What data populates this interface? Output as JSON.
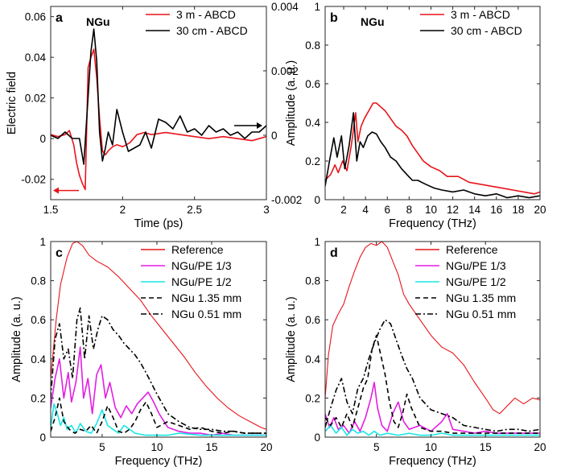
{
  "chart_data": [
    {
      "panel": "a",
      "tag": "NGu",
      "type": "line",
      "xlabel": "Time (ps)",
      "ylabel": "Electric field",
      "y2label": "",
      "xlim": [
        1.5,
        3
      ],
      "ylim": [
        -0.03,
        0.065
      ],
      "y2lim": [
        -0.002,
        0.004
      ],
      "xticks": [
        "1.5",
        "2",
        "2.5",
        "3"
      ],
      "yticks": [
        "-0.02",
        "0",
        "0.02",
        "0.04",
        "0.06"
      ],
      "y2ticks": [
        "-0.002",
        "0",
        "0.002",
        "0.004"
      ],
      "legend": "top-right",
      "series": [
        {
          "name": "3 m - ABCD",
          "color": "#e8141b",
          "axis": "left",
          "x": [
            1.5,
            1.55,
            1.6,
            1.63,
            1.66,
            1.68,
            1.7,
            1.72,
            1.74,
            1.76,
            1.78,
            1.8,
            1.82,
            1.84,
            1.86,
            1.88,
            1.9,
            1.93,
            1.96,
            2.0,
            2.05,
            2.1,
            2.15,
            2.2,
            2.3,
            2.4,
            2.5,
            2.6,
            2.7,
            2.8,
            2.9,
            3.0
          ],
          "y": [
            0.002,
            0.001,
            0.002,
            0.004,
            -0.003,
            -0.012,
            -0.018,
            -0.022,
            -0.025,
            0.035,
            0.04,
            0.044,
            0.03,
            0.01,
            -0.006,
            -0.008,
            -0.006,
            -0.004,
            -0.003,
            -0.004,
            -0.002,
            0.002,
            0.003,
            0.002,
            0.003,
            0.002,
            0.001,
            0.0,
            0.001,
            0.0,
            -0.001,
            0.001
          ]
        },
        {
          "name": "30 cm - ABCD",
          "color": "#000000",
          "axis": "right",
          "x": [
            1.5,
            1.55,
            1.6,
            1.65,
            1.7,
            1.73,
            1.76,
            1.78,
            1.8,
            1.82,
            1.84,
            1.86,
            1.88,
            1.9,
            1.93,
            1.96,
            2.0,
            2.04,
            2.08,
            2.12,
            2.16,
            2.2,
            2.25,
            2.3,
            2.35,
            2.4,
            2.45,
            2.5,
            2.55,
            2.6,
            2.65,
            2.7,
            2.75,
            2.8,
            2.85,
            2.9,
            2.95,
            3.0
          ],
          "y": [
            0.0,
            -0.0001,
            0.0001,
            -0.0001,
            -0.0001,
            -0.0009,
            0.0012,
            0.0026,
            0.0033,
            0.0023,
            0.0001,
            -0.0008,
            -0.0004,
            0.0001,
            -0.0003,
            0.0008,
            0.0001,
            -0.0005,
            -0.0004,
            -0.0003,
            0.0001,
            -0.0004,
            0.0005,
            0.0004,
            0.0002,
            0.0006,
            0.0001,
            0.0002,
            0.0,
            0.0003,
            0.0001,
            0.0002,
            0.0,
            0.0001,
            -0.0001,
            0.0001,
            0.0001,
            0.0003
          ]
        }
      ]
    },
    {
      "panel": "b",
      "tag": "NGu",
      "type": "line",
      "xlabel": "Frequency (THz)",
      "ylabel": "Amplitude (a. u.)",
      "xlim": [
        0.3,
        20
      ],
      "ylim": [
        0,
        1
      ],
      "xticks": [
        "2",
        "4",
        "6",
        "8",
        "10",
        "12",
        "14",
        "16",
        "18",
        "20"
      ],
      "yticks": [
        "0",
        "0.2",
        "0.4",
        "0.6",
        "0.8",
        "1"
      ],
      "legend": "top-right",
      "series": [
        {
          "name": "3 m - ABCD",
          "color": "#e8141b",
          "x": [
            0.3,
            0.8,
            1.2,
            1.5,
            1.9,
            2.3,
            2.7,
            3.1,
            3.3,
            3.6,
            3.9,
            4.3,
            4.7,
            5.0,
            5.4,
            5.8,
            6.3,
            6.8,
            7.3,
            7.8,
            8.3,
            8.8,
            9.3,
            10.0,
            10.8,
            11.5,
            12.5,
            13.5,
            14.5,
            15.5,
            16.5,
            17.5,
            18.5,
            19.5,
            20.0
          ],
          "y": [
            0.1,
            0.13,
            0.18,
            0.14,
            0.2,
            0.15,
            0.28,
            0.45,
            0.3,
            0.38,
            0.42,
            0.46,
            0.5,
            0.5,
            0.48,
            0.46,
            0.42,
            0.38,
            0.36,
            0.33,
            0.28,
            0.24,
            0.2,
            0.17,
            0.15,
            0.12,
            0.12,
            0.09,
            0.08,
            0.07,
            0.06,
            0.05,
            0.04,
            0.03,
            0.04
          ]
        },
        {
          "name": "30 cm - ABCD",
          "color": "#000000",
          "x": [
            0.3,
            0.7,
            1.1,
            1.4,
            1.8,
            2.1,
            2.5,
            2.9,
            3.2,
            3.5,
            3.8,
            4.2,
            4.6,
            5.0,
            5.4,
            5.8,
            6.3,
            6.8,
            7.3,
            7.8,
            8.3,
            8.8,
            9.5,
            10.3,
            11.0,
            12.0,
            13.0,
            14.0,
            15.0,
            16.0,
            17.0,
            18.0,
            19.0,
            20.0
          ],
          "y": [
            0.07,
            0.2,
            0.32,
            0.22,
            0.33,
            0.16,
            0.28,
            0.45,
            0.2,
            0.3,
            0.27,
            0.33,
            0.35,
            0.34,
            0.3,
            0.27,
            0.22,
            0.2,
            0.16,
            0.13,
            0.1,
            0.1,
            0.08,
            0.06,
            0.05,
            0.04,
            0.05,
            0.03,
            0.02,
            0.03,
            0.01,
            0.02,
            0.01,
            0.02
          ]
        }
      ]
    },
    {
      "panel": "c",
      "type": "line",
      "xlabel": "Frequency (THz)",
      "ylabel": "Amplitude (a. u.)",
      "xlim": [
        0.3,
        20
      ],
      "ylim": [
        0,
        1
      ],
      "xticks": [
        "5",
        "10",
        "15",
        "20"
      ],
      "yticks": [
        "0",
        "0.2",
        "0.4",
        "0.6",
        "0.8",
        "1"
      ],
      "legend": "top-right",
      "series": [
        {
          "name": "Reference",
          "color": "#e8141b",
          "dash": "solid",
          "x": [
            0.3,
            0.8,
            1.2,
            1.8,
            2.3,
            2.7,
            3.2,
            3.8,
            4.5,
            5.5,
            6.5,
            7.5,
            8.5,
            9.5,
            10.5,
            11.5,
            12.5,
            13.5,
            14.5,
            15.5,
            16.5,
            17.5,
            18.5,
            19.5,
            20.0
          ],
          "y": [
            0.3,
            0.6,
            0.78,
            0.92,
            0.99,
            1.0,
            0.98,
            0.93,
            0.9,
            0.87,
            0.82,
            0.76,
            0.7,
            0.62,
            0.55,
            0.48,
            0.41,
            0.33,
            0.26,
            0.2,
            0.15,
            0.11,
            0.08,
            0.05,
            0.04
          ]
        },
        {
          "name": "NGu/PE 1/3",
          "color": "#e31ee3",
          "dash": "solid",
          "x": [
            0.3,
            0.7,
            1.1,
            1.5,
            1.9,
            2.2,
            2.6,
            3.0,
            3.3,
            3.7,
            4.1,
            4.5,
            4.9,
            5.3,
            5.7,
            6.2,
            6.7,
            7.2,
            7.7,
            8.2,
            8.7,
            9.2,
            9.7,
            10.2,
            11.0,
            12.0,
            13.0,
            14.0,
            15.0,
            16.0,
            17.0,
            18.0,
            19.0,
            20.0
          ],
          "y": [
            0.15,
            0.3,
            0.4,
            0.2,
            0.33,
            0.18,
            0.28,
            0.46,
            0.2,
            0.3,
            0.12,
            0.32,
            0.37,
            0.2,
            0.28,
            0.15,
            0.1,
            0.16,
            0.12,
            0.17,
            0.2,
            0.23,
            0.18,
            0.12,
            0.05,
            0.03,
            0.02,
            0.02,
            0.01,
            0.02,
            0.01,
            0.01,
            0.01,
            0.01
          ]
        },
        {
          "name": "NGu/PE 1/2",
          "color": "#15e8e6",
          "dash": "solid",
          "x": [
            0.3,
            0.6,
            0.9,
            1.2,
            1.5,
            1.8,
            2.2,
            2.6,
            3.0,
            3.5,
            4.0,
            4.5,
            5.0,
            5.5,
            6.0,
            6.5,
            7.0,
            8.0,
            9.0,
            10.0,
            11.0,
            12.0,
            14.0,
            16.0,
            18.0,
            20.0
          ],
          "y": [
            0.05,
            0.17,
            0.12,
            0.06,
            0.1,
            0.04,
            0.06,
            0.02,
            0.07,
            0.03,
            0.02,
            0.07,
            0.14,
            0.06,
            0.04,
            0.02,
            0.06,
            0.02,
            0.01,
            0.01,
            0.01,
            0.02,
            0.01,
            0.01,
            0.01,
            0.01
          ]
        },
        {
          "name": "NGu 1.35 mm",
          "color": "#000000",
          "dash": "dashed",
          "x": [
            0.3,
            0.7,
            1.1,
            1.5,
            2.0,
            2.5,
            3.0,
            3.5,
            4.0,
            4.5,
            5.0,
            5.5,
            6.0,
            6.5,
            7.0,
            7.5,
            8.0,
            8.5,
            9.0,
            9.5,
            10.0,
            11.0,
            12.0,
            13.0,
            14.0,
            15.0,
            16.0,
            17.0,
            18.0,
            19.0,
            20.0
          ],
          "y": [
            0.03,
            0.1,
            0.2,
            0.08,
            0.04,
            0.02,
            0.04,
            0.03,
            0.06,
            0.02,
            0.08,
            0.16,
            0.1,
            0.03,
            0.02,
            0.04,
            0.08,
            0.14,
            0.18,
            0.12,
            0.05,
            0.08,
            0.06,
            0.04,
            0.05,
            0.03,
            0.02,
            0.03,
            0.02,
            0.02,
            0.02
          ]
        },
        {
          "name": "NGu 0.51 mm",
          "color": "#000000",
          "dash": "dashdot",
          "x": [
            0.3,
            0.7,
            1.1,
            1.5,
            1.9,
            2.3,
            2.7,
            3.0,
            3.4,
            3.8,
            4.2,
            4.6,
            5.0,
            5.5,
            6.0,
            6.5,
            7.0,
            7.5,
            8.0,
            8.5,
            9.0,
            10.0,
            11.0,
            12.0,
            13.0,
            14.0,
            15.0,
            16.0,
            17.0,
            18.0,
            19.0,
            20.0
          ],
          "y": [
            0.2,
            0.5,
            0.58,
            0.4,
            0.45,
            0.3,
            0.6,
            0.66,
            0.4,
            0.62,
            0.45,
            0.55,
            0.62,
            0.6,
            0.55,
            0.52,
            0.48,
            0.45,
            0.42,
            0.38,
            0.33,
            0.22,
            0.12,
            0.08,
            0.05,
            0.04,
            0.04,
            0.03,
            0.03,
            0.02,
            0.02,
            0.02
          ]
        }
      ]
    },
    {
      "panel": "d",
      "type": "line",
      "xlabel": "Frequency (THz)",
      "ylabel": "Amplitude (a. u.)",
      "xlim": [
        0.3,
        20
      ],
      "ylim": [
        0,
        1
      ],
      "xticks": [
        "5",
        "10",
        "15",
        "20"
      ],
      "yticks": [
        "0",
        "0.2",
        "0.4",
        "0.6",
        "0.8",
        "1"
      ],
      "legend": "top-right",
      "series": [
        {
          "name": "Reference",
          "color": "#e8141b",
          "dash": "solid",
          "x": [
            0.3,
            0.6,
            1.0,
            1.5,
            2.0,
            2.5,
            3.0,
            3.5,
            4.0,
            4.5,
            5.0,
            5.5,
            6.0,
            6.5,
            7.0,
            7.5,
            8.0,
            9.0,
            10.0,
            11.0,
            12.0,
            13.0,
            14.0,
            15.0,
            15.7,
            16.3,
            17.0,
            17.7,
            18.5,
            19.3,
            20.0
          ],
          "y": [
            0.2,
            0.42,
            0.57,
            0.63,
            0.68,
            0.77,
            0.85,
            0.92,
            0.97,
            0.99,
            0.98,
            1.0,
            0.97,
            0.9,
            0.83,
            0.73,
            0.68,
            0.6,
            0.52,
            0.46,
            0.43,
            0.37,
            0.28,
            0.2,
            0.14,
            0.12,
            0.16,
            0.2,
            0.17,
            0.2,
            0.19
          ]
        },
        {
          "name": "NGu/PE 1/3",
          "color": "#e31ee3",
          "dash": "solid",
          "x": [
            0.3,
            0.7,
            1.1,
            1.5,
            2.0,
            2.5,
            3.0,
            3.5,
            4.0,
            4.5,
            4.8,
            5.1,
            5.5,
            6.0,
            6.5,
            7.0,
            7.5,
            8.0,
            9.0,
            10.0,
            11.0,
            11.5,
            12.0,
            13.0,
            14.0,
            15.0,
            16.0,
            17.0,
            18.0,
            19.0,
            20.0
          ],
          "y": [
            0.12,
            0.05,
            0.1,
            0.04,
            0.06,
            0.02,
            0.08,
            0.03,
            0.1,
            0.2,
            0.28,
            0.15,
            0.06,
            0.03,
            0.12,
            0.18,
            0.08,
            0.04,
            0.06,
            0.03,
            0.08,
            0.12,
            0.04,
            0.03,
            0.02,
            0.03,
            0.02,
            0.02,
            0.02,
            0.02,
            0.02
          ]
        },
        {
          "name": "NGu/PE 1/2",
          "color": "#15e8e6",
          "dash": "solid",
          "x": [
            0.3,
            0.8,
            1.3,
            1.8,
            2.3,
            2.8,
            3.3,
            3.8,
            4.3,
            4.8,
            5.3,
            6.0,
            7.0,
            8.0,
            9.0,
            10.0,
            11.0,
            12.0,
            14.0,
            16.0,
            18.0,
            20.0
          ],
          "y": [
            0.03,
            0.06,
            0.02,
            0.05,
            0.01,
            0.04,
            0.02,
            0.03,
            0.01,
            0.03,
            0.01,
            0.02,
            0.01,
            0.02,
            0.01,
            0.01,
            0.02,
            0.01,
            0.01,
            0.01,
            0.01,
            0.01
          ]
        },
        {
          "name": "NGu 1.35 mm",
          "color": "#000000",
          "dash": "dashed",
          "x": [
            0.3,
            0.8,
            1.3,
            1.8,
            2.3,
            2.8,
            3.3,
            3.8,
            4.2,
            4.6,
            5.0,
            5.4,
            5.8,
            6.2,
            6.6,
            7.0,
            7.4,
            7.8,
            8.2,
            9.0,
            10.0,
            11.0,
            12.0,
            14.0,
            16.0,
            18.0,
            20.0
          ],
          "y": [
            0.1,
            0.06,
            0.1,
            0.05,
            0.12,
            0.05,
            0.15,
            0.25,
            0.3,
            0.45,
            0.52,
            0.42,
            0.32,
            0.18,
            0.08,
            0.05,
            0.12,
            0.22,
            0.15,
            0.05,
            0.03,
            0.03,
            0.02,
            0.02,
            0.02,
            0.02,
            0.02
          ]
        },
        {
          "name": "NGu 0.51 mm",
          "color": "#000000",
          "dash": "dashdot",
          "x": [
            0.3,
            0.8,
            1.3,
            1.8,
            2.3,
            2.8,
            3.3,
            3.8,
            4.3,
            4.8,
            5.3,
            5.8,
            6.3,
            6.8,
            7.3,
            7.8,
            8.3,
            9.0,
            10.0,
            11.0,
            12.0,
            13.0,
            14.0,
            15.0,
            16.0,
            17.0,
            18.0,
            19.0,
            20.0
          ],
          "y": [
            0.05,
            0.15,
            0.24,
            0.3,
            0.18,
            0.12,
            0.25,
            0.3,
            0.4,
            0.48,
            0.55,
            0.6,
            0.58,
            0.5,
            0.42,
            0.35,
            0.3,
            0.2,
            0.14,
            0.12,
            0.1,
            0.06,
            0.05,
            0.04,
            0.03,
            0.04,
            0.04,
            0.03,
            0.04
          ]
        }
      ]
    }
  ]
}
